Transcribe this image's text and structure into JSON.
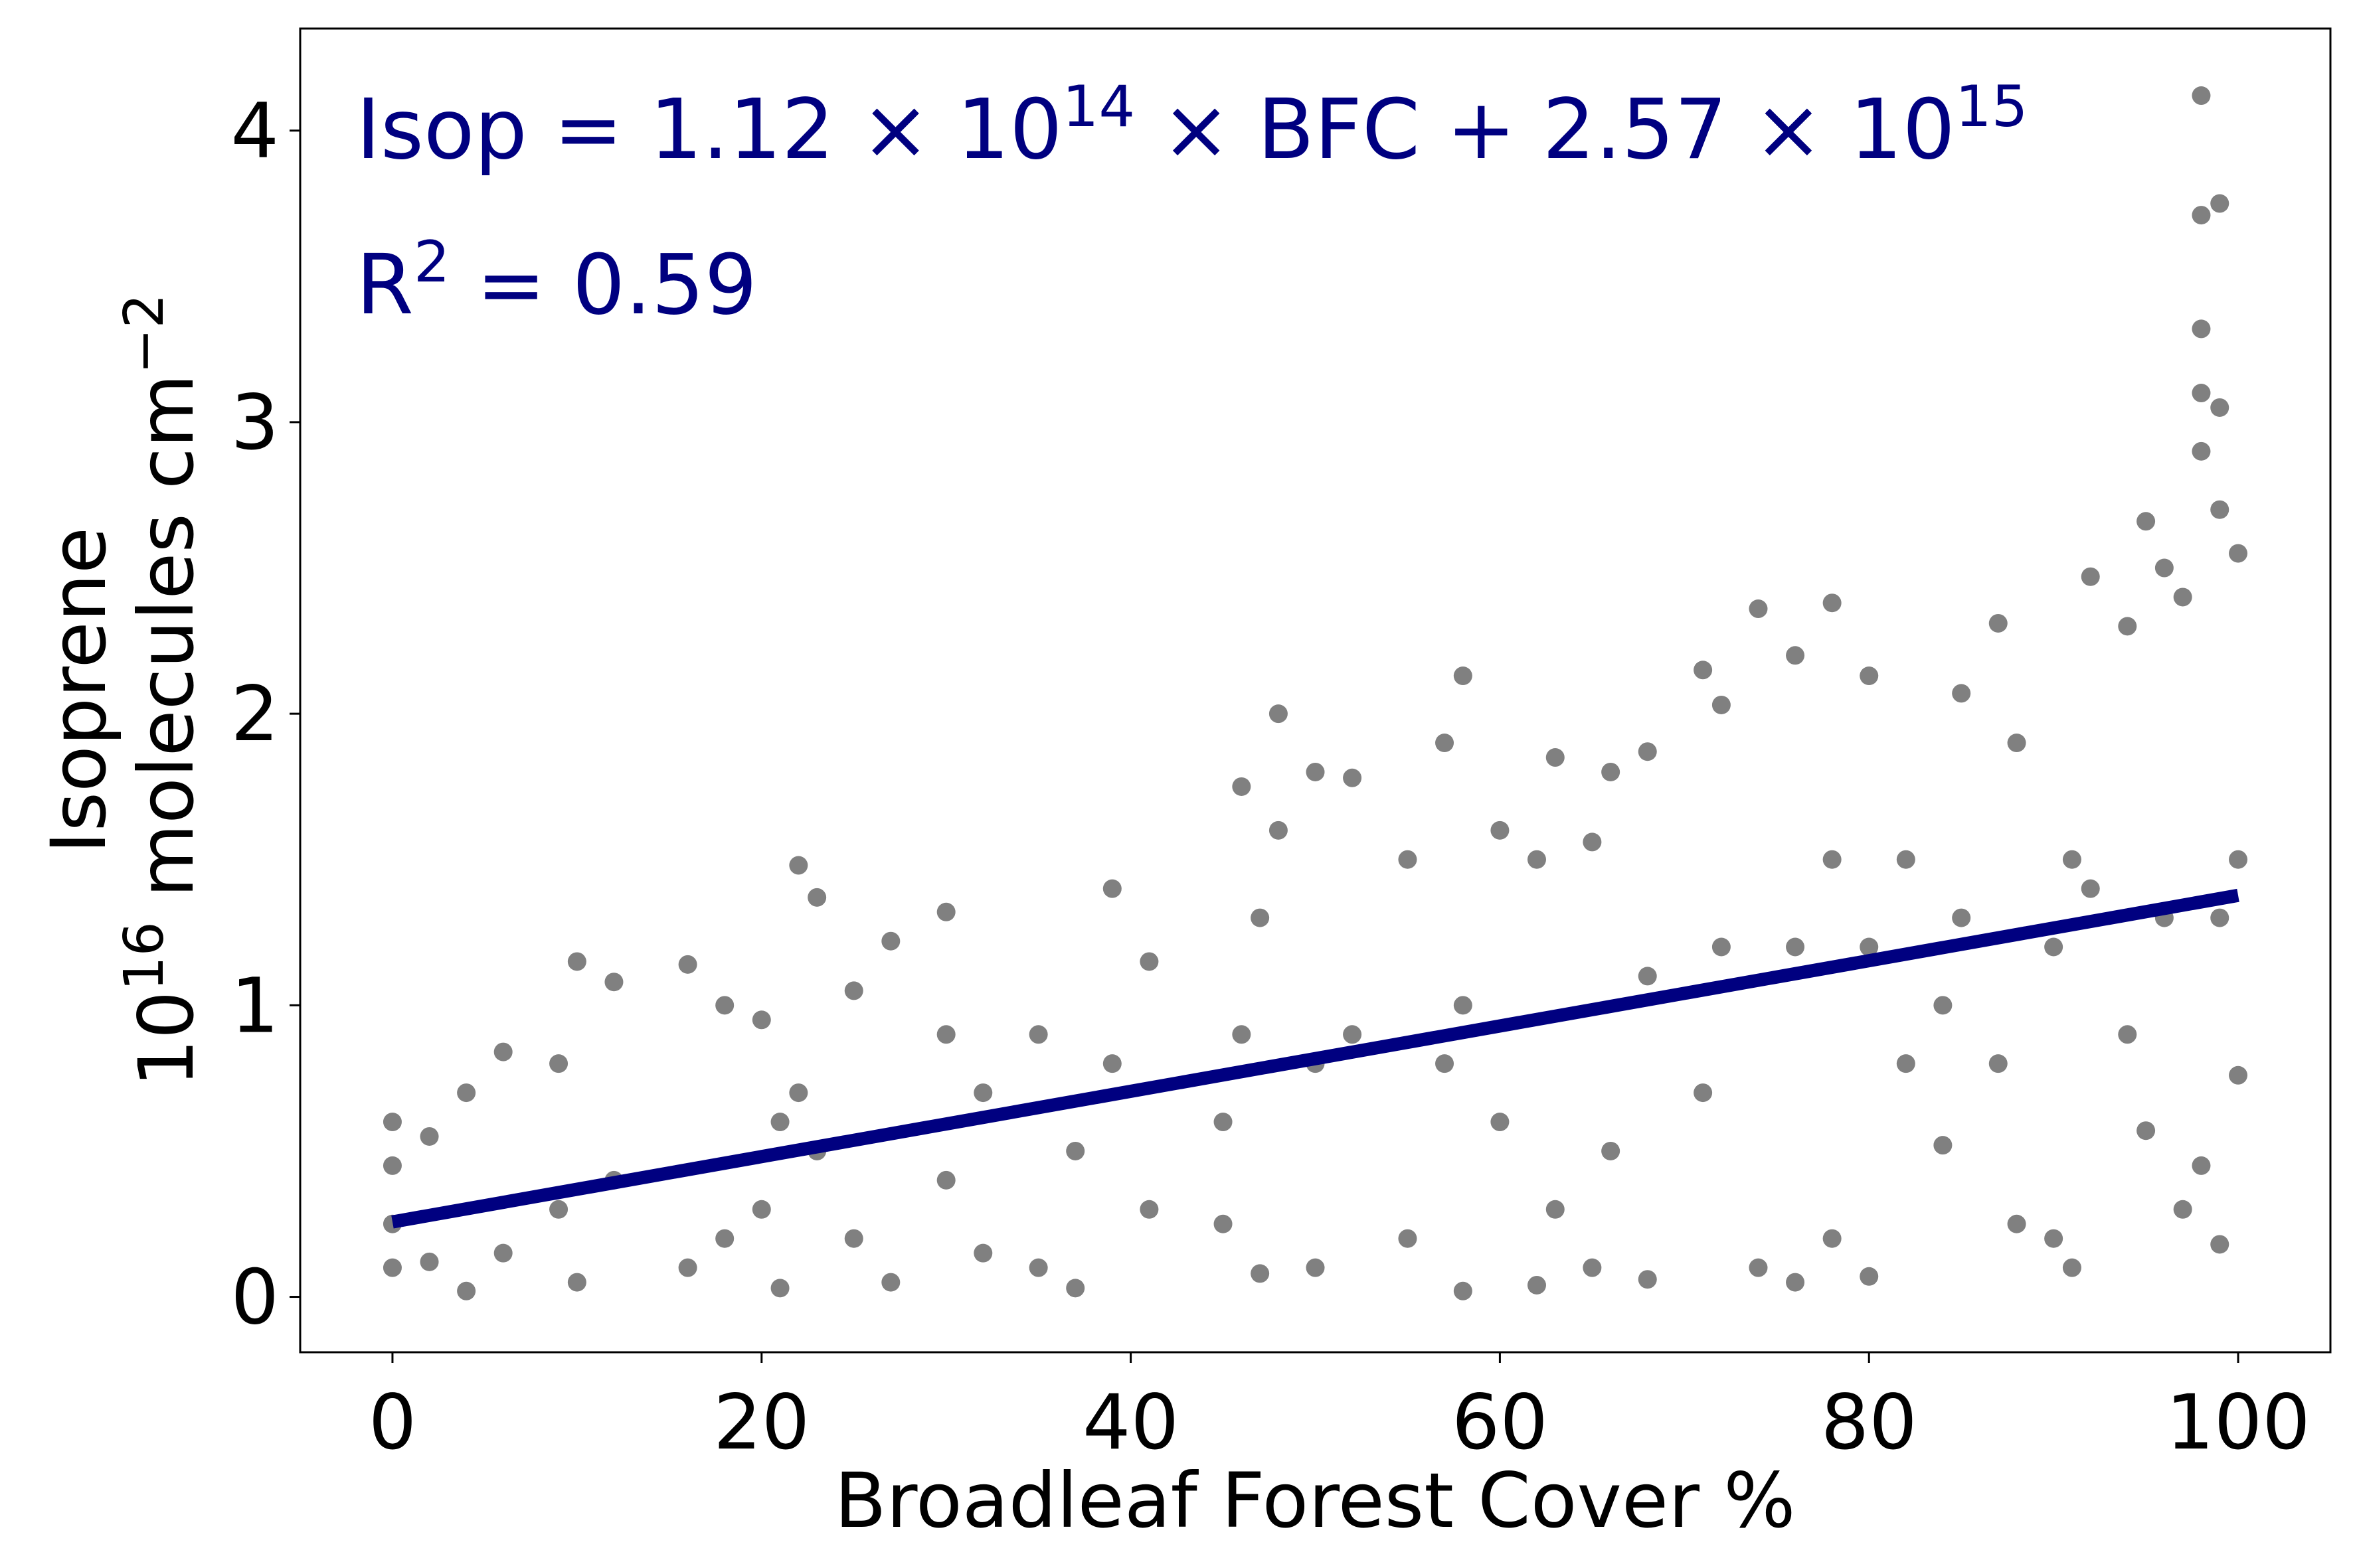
{
  "chart_data": {
    "type": "scatter",
    "xlabel": "Broadleaf Forest Cover %",
    "ylabel": [
      "Isoprene",
      "10",
      "16",
      " molecules cm",
      "−2"
    ],
    "annotations": [
      [
        "Isop = 1.12 × 10",
        "14",
        " × BFC + 2.57 × 10",
        "15"
      ],
      [
        "R",
        "2",
        " = 0.59"
      ]
    ],
    "annotation_color": "#000080",
    "xlim": [
      -5,
      105
    ],
    "ylim": [
      -0.19,
      4.35
    ],
    "xticks": [
      0,
      20,
      40,
      60,
      80,
      100
    ],
    "yticks": [
      0,
      1,
      2,
      3,
      4
    ],
    "series": [
      {
        "type": "scatter",
        "color": "#808080",
        "x": [
          0,
          0,
          0,
          0,
          2,
          2,
          4,
          4,
          6,
          6,
          9,
          9,
          10,
          10,
          12,
          12,
          16,
          16,
          18,
          18,
          20,
          20,
          21,
          21,
          22,
          22,
          23,
          23,
          25,
          25,
          27,
          27,
          30,
          30,
          30,
          32,
          32,
          35,
          35,
          37,
          37,
          39,
          39,
          41,
          41,
          45,
          45,
          46,
          46,
          47,
          47,
          48,
          48,
          50,
          50,
          50,
          52,
          52,
          55,
          55,
          57,
          57,
          58,
          58,
          58,
          60,
          60,
          62,
          62,
          63,
          63,
          65,
          65,
          66,
          66,
          68,
          68,
          68,
          71,
          71,
          72,
          72,
          74,
          74,
          76,
          76,
          76,
          78,
          78,
          78,
          80,
          80,
          80,
          82,
          82,
          84,
          84,
          85,
          85,
          87,
          87,
          88,
          88,
          90,
          90,
          91,
          91,
          92,
          92,
          94,
          94,
          95,
          95,
          96,
          96,
          97,
          97,
          98,
          98,
          98,
          98,
          98,
          98,
          99,
          99,
          99,
          99,
          99,
          100,
          100,
          100
        ],
        "values": [
          0.6,
          0.1,
          0.25,
          0.45,
          0.55,
          0.12,
          0.02,
          0.7,
          0.84,
          0.15,
          0.8,
          0.3,
          1.15,
          0.05,
          1.08,
          0.4,
          1.14,
          0.1,
          1.0,
          0.2,
          0.95,
          0.3,
          0.03,
          0.6,
          1.48,
          0.7,
          1.37,
          0.5,
          1.05,
          0.2,
          1.22,
          0.05,
          1.32,
          0.4,
          0.9,
          0.15,
          0.7,
          0.9,
          0.1,
          0.03,
          0.5,
          1.4,
          0.8,
          1.15,
          0.3,
          0.25,
          0.6,
          1.75,
          0.9,
          0.08,
          1.3,
          2.0,
          1.6,
          0.1,
          1.8,
          0.8,
          1.78,
          0.9,
          1.5,
          0.2,
          1.9,
          0.8,
          2.13,
          0.02,
          1.0,
          1.6,
          0.6,
          1.5,
          0.04,
          1.85,
          0.3,
          1.56,
          0.1,
          1.8,
          0.5,
          1.87,
          0.06,
          1.1,
          2.15,
          0.7,
          2.03,
          1.2,
          2.36,
          0.1,
          2.2,
          0.05,
          1.2,
          2.38,
          0.2,
          1.5,
          2.13,
          0.07,
          1.2,
          1.5,
          0.8,
          0.52,
          1.0,
          2.07,
          1.3,
          2.31,
          0.8,
          0.25,
          1.9,
          0.2,
          1.2,
          0.1,
          1.5,
          2.47,
          1.4,
          2.3,
          0.9,
          2.66,
          0.57,
          2.5,
          1.3,
          2.4,
          0.3,
          4.12,
          3.71,
          3.32,
          3.1,
          2.9,
          0.45,
          3.75,
          3.05,
          2.7,
          0.18,
          1.3,
          2.55,
          0.76,
          1.5
        ]
      },
      {
        "type": "line",
        "color": "#000080",
        "x": [
          0,
          100
        ],
        "values": [
          0.257,
          1.377
        ]
      }
    ]
  }
}
